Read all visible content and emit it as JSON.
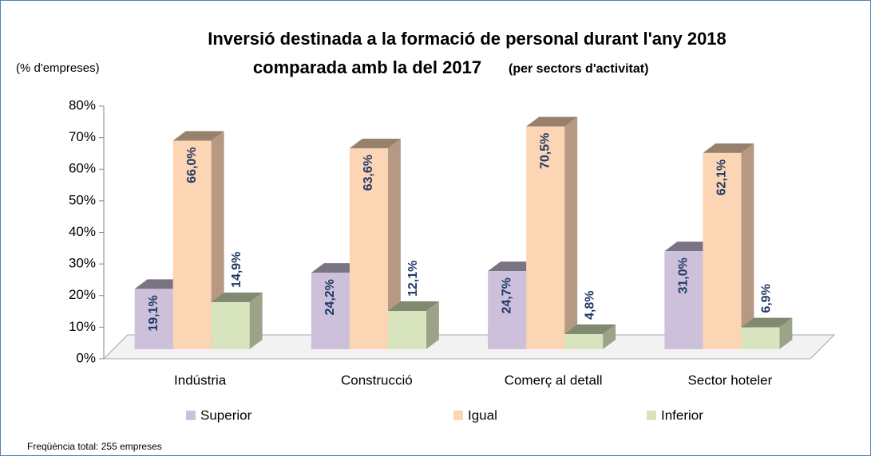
{
  "chart_data": {
    "type": "bar3d",
    "title": "Inversió destinada a la formació de personal durant l'any 2018",
    "title_line2": "comparada amb la del 2017",
    "subtitle": "(per sectors d'activitat)",
    "ylabel": "(% d'empreses)",
    "note": "Freqüència total: 255 empreses",
    "categories": [
      "Indústria",
      "Construcció",
      "Comerç al detall",
      "Sector hoteler"
    ],
    "series": [
      {
        "name": "Superior",
        "color": "#ccc0da",
        "values": [
          19.1,
          24.2,
          24.7,
          31.0
        ],
        "value_labels": [
          "19,1%",
          "24,2%",
          "24,7%",
          "31,0%"
        ]
      },
      {
        "name": "Igual",
        "color": "#fcd5b4",
        "values": [
          66.0,
          63.6,
          70.5,
          62.1
        ],
        "value_labels": [
          "66,0%",
          "63,6%",
          "70,5%",
          "62,1%"
        ]
      },
      {
        "name": "Inferior",
        "color": "#d7e4bd",
        "values": [
          14.9,
          12.1,
          4.8,
          6.9
        ],
        "value_labels": [
          "14,9%",
          "12,1%",
          "4,8%",
          "6,9%"
        ]
      }
    ],
    "ylim": [
      0,
      80
    ],
    "yticks": [
      {
        "value": 0,
        "label": "0%"
      },
      {
        "value": 10,
        "label": "10%"
      },
      {
        "value": 20,
        "label": "20%"
      },
      {
        "value": 30,
        "label": "30%"
      },
      {
        "value": 40,
        "label": "40%"
      },
      {
        "value": 50,
        "label": "50%"
      },
      {
        "value": 60,
        "label": "60%"
      },
      {
        "value": 70,
        "label": "70%"
      },
      {
        "value": 80,
        "label": "80%"
      }
    ],
    "legend": "bottom"
  }
}
